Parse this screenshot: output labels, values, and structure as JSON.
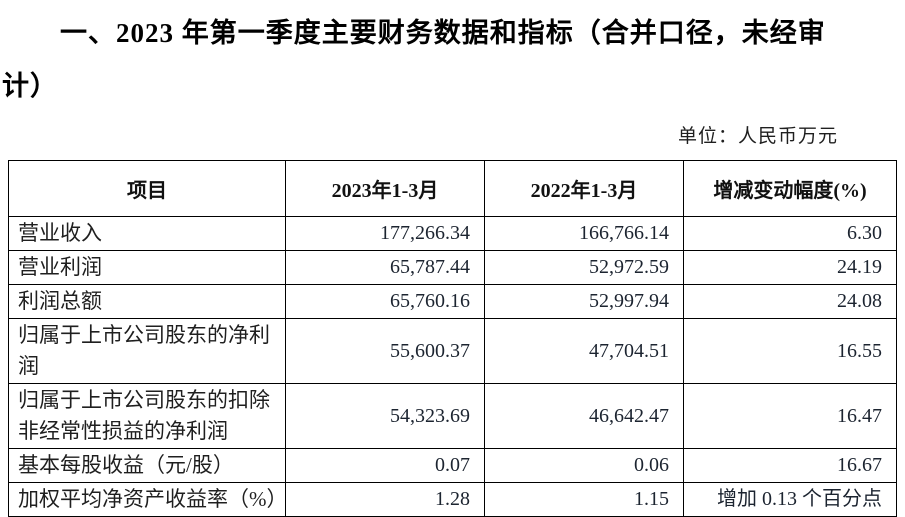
{
  "page": {
    "title_line1": "一、2023 年第一季度主要财务数据和指标（合并口径，未经审",
    "title_line2": "计）",
    "unit_note": "单位：人民币万元"
  },
  "table": {
    "headers": [
      "项目",
      "2023年1-3月",
      "2022年1-3月",
      "增减变动幅度(%)"
    ],
    "rows": [
      {
        "item": "营业收入",
        "q1_2023": "177,266.34",
        "q1_2022": "166,766.14",
        "change": "6.30"
      },
      {
        "item": "营业利润",
        "q1_2023": "65,787.44",
        "q1_2022": "52,972.59",
        "change": "24.19"
      },
      {
        "item": "利润总额",
        "q1_2023": "65,760.16",
        "q1_2022": "52,997.94",
        "change": "24.08"
      },
      {
        "item": "归属于上市公司股东的净利润",
        "q1_2023": "55,600.37",
        "q1_2022": "47,704.51",
        "change": "16.55"
      },
      {
        "item": "归属于上市公司股东的扣除非经常性损益的净利润",
        "q1_2023": "54,323.69",
        "q1_2022": "46,642.47",
        "change": "16.47"
      },
      {
        "item": "基本每股收益（元/股）",
        "q1_2023": "0.07",
        "q1_2022": "0.06",
        "change": "16.67"
      },
      {
        "item": "加权平均净资产收益率（%）",
        "q1_2023": "1.28",
        "q1_2022": "1.15",
        "change": "增加 0.13 个百分点"
      }
    ]
  },
  "colors": {
    "background": "#ffffff",
    "text": "#1f1f1f",
    "border": "#000000"
  }
}
